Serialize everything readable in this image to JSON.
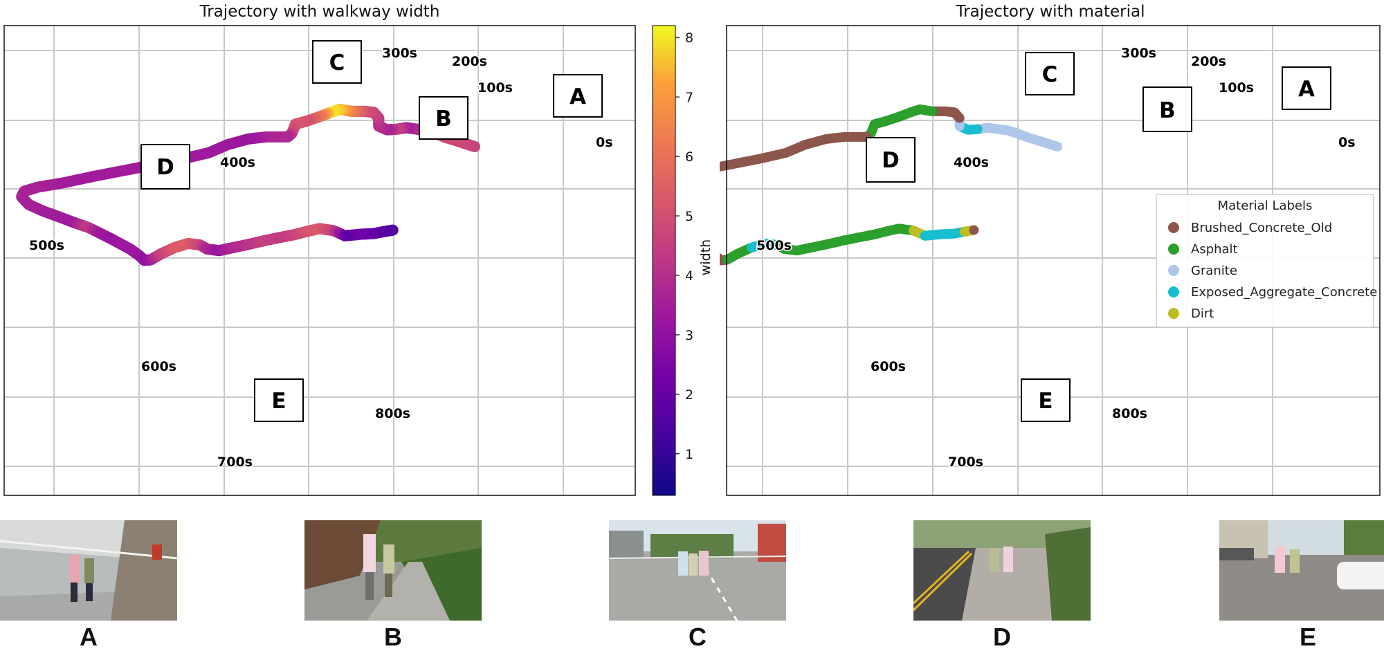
{
  "chart_data": [
    {
      "type": "scatter",
      "title": "Trajectory with walkway width",
      "colorbar": {
        "label": "width",
        "range": [
          0.3,
          8.2
        ],
        "ticks": [
          1,
          2,
          3,
          4,
          5,
          6,
          7,
          8
        ],
        "colormap": "plasma"
      },
      "grid": true,
      "time_labels": [
        "0s",
        "100s",
        "200s",
        "300s",
        "400s",
        "500s",
        "600s",
        "700s",
        "800s"
      ],
      "segment_labels": [
        "A",
        "B",
        "C",
        "D",
        "E"
      ],
      "path": [
        {
          "x": 0.0,
          "y": 0.0,
          "v": 4.6
        },
        {
          "x": -2.0,
          "y": 0.9,
          "v": 4.7
        },
        {
          "x": -4.1,
          "y": 1.8,
          "v": 4.8
        },
        {
          "x": -5.6,
          "y": 2.6,
          "v": 4.4
        },
        {
          "x": -7.0,
          "y": 3.2,
          "v": 3.3
        },
        {
          "x": -8.6,
          "y": 3.5,
          "v": 4.0
        },
        {
          "x": -9.7,
          "y": 3.7,
          "v": 3.5
        },
        {
          "x": -11.1,
          "y": 3.4,
          "v": 4.6
        },
        {
          "x": -12.4,
          "y": 3.3,
          "v": 3.6
        },
        {
          "x": -13.6,
          "y": 4.0,
          "v": 3.9
        },
        {
          "x": -13.6,
          "y": 5.6,
          "v": 4.3
        },
        {
          "x": -14.3,
          "y": 6.7,
          "v": 4.6
        },
        {
          "x": -15.6,
          "y": 6.9,
          "v": 5.0
        },
        {
          "x": -17.4,
          "y": 6.9,
          "v": 6.2
        },
        {
          "x": -19.1,
          "y": 7.3,
          "v": 7.6
        },
        {
          "x": -20.4,
          "y": 6.7,
          "v": 8.0
        },
        {
          "x": -21.9,
          "y": 5.9,
          "v": 6.2
        },
        {
          "x": -23.8,
          "y": 5.0,
          "v": 5.0
        },
        {
          "x": -25.4,
          "y": 4.4,
          "v": 5.2
        },
        {
          "x": -25.9,
          "y": 2.6,
          "v": 4.8
        },
        {
          "x": -26.5,
          "y": 1.9,
          "v": 3.8
        },
        {
          "x": -29.6,
          "y": 1.9,
          "v": 3.7
        },
        {
          "x": -32.1,
          "y": 1.5,
          "v": 3.2
        },
        {
          "x": -35.0,
          "y": 0.4,
          "v": 3.3
        },
        {
          "x": -37.7,
          "y": -1.2,
          "v": 3.3
        },
        {
          "x": -41.1,
          "y": -2.3,
          "v": 3.4
        },
        {
          "x": -44.7,
          "y": -3.3,
          "v": 3.3
        },
        {
          "x": -49.1,
          "y": -4.5,
          "v": 3.4
        },
        {
          "x": -54.0,
          "y": -5.8,
          "v": 3.4
        },
        {
          "x": -58.4,
          "y": -7.1,
          "v": 3.4
        },
        {
          "x": -61.9,
          "y": -7.9,
          "v": 3.6
        },
        {
          "x": -63.8,
          "y": -8.7,
          "v": 3.6
        },
        {
          "x": -64.2,
          "y": -9.8,
          "v": 3.7
        },
        {
          "x": -63.2,
          "y": -11.3,
          "v": 3.5
        },
        {
          "x": -61.1,
          "y": -12.6,
          "v": 3.5
        },
        {
          "x": -58.9,
          "y": -13.7,
          "v": 3.4
        },
        {
          "x": -56.8,
          "y": -14.8,
          "v": 3.3
        },
        {
          "x": -54.7,
          "y": -15.8,
          "v": 4.4
        },
        {
          "x": -53.1,
          "y": -16.9,
          "v": 3.4
        },
        {
          "x": -51.5,
          "y": -18.0,
          "v": 3.2
        },
        {
          "x": -49.9,
          "y": -19.2,
          "v": 3.3
        },
        {
          "x": -48.8,
          "y": -20.0,
          "v": 3.3
        },
        {
          "x": -47.5,
          "y": -21.3,
          "v": 3.2
        },
        {
          "x": -46.8,
          "y": -22.2,
          "v": 3.0
        },
        {
          "x": -45.9,
          "y": -22.1,
          "v": 3.2
        },
        {
          "x": -44.4,
          "y": -20.9,
          "v": 4.5
        },
        {
          "x": -42.5,
          "y": -19.7,
          "v": 5.3
        },
        {
          "x": -40.6,
          "y": -18.9,
          "v": 5.4
        },
        {
          "x": -38.9,
          "y": -19.2,
          "v": 4.8
        },
        {
          "x": -37.9,
          "y": -20.0,
          "v": 3.8
        },
        {
          "x": -36.2,
          "y": -20.3,
          "v": 3.2
        },
        {
          "x": -34.5,
          "y": -19.8,
          "v": 3.7
        },
        {
          "x": -32.1,
          "y": -19.1,
          "v": 4.1
        },
        {
          "x": -29.6,
          "y": -18.3,
          "v": 4.6
        },
        {
          "x": -27.5,
          "y": -17.7,
          "v": 4.3
        },
        {
          "x": -25.6,
          "y": -17.2,
          "v": 4.6
        },
        {
          "x": -23.6,
          "y": -16.5,
          "v": 5.1
        },
        {
          "x": -22.0,
          "y": -16.0,
          "v": 5.3
        },
        {
          "x": -20.0,
          "y": -16.4,
          "v": 4.6
        },
        {
          "x": -18.4,
          "y": -17.4,
          "v": 2.6
        },
        {
          "x": -17.6,
          "y": -17.3,
          "v": 1.7
        },
        {
          "x": -16.1,
          "y": -17.1,
          "v": 2.3
        },
        {
          "x": -14.4,
          "y": -17.0,
          "v": 2.0
        },
        {
          "x": -12.9,
          "y": -16.6,
          "v": 1.8
        },
        {
          "x": -11.6,
          "y": -16.3,
          "v": 1.6
        }
      ]
    },
    {
      "type": "scatter",
      "title": "Trajectory with material",
      "grid": true,
      "time_labels": [
        "0s",
        "100s",
        "200s",
        "300s",
        "400s",
        "500s",
        "600s",
        "700s",
        "800s"
      ],
      "segment_labels": [
        "A",
        "B",
        "C",
        "D",
        "E"
      ],
      "legend": {
        "title": "Material Labels",
        "position": "center-right",
        "entries": [
          {
            "name": "Brushed_Concrete_Old",
            "color": "#8c564b"
          },
          {
            "name": "Asphalt",
            "color": "#2ca02c"
          },
          {
            "name": "Granite",
            "color": "#aec7e8"
          },
          {
            "name": "Exposed_Aggregate_Concrete",
            "color": "#17becf"
          },
          {
            "name": "Dirt",
            "color": "#bcbd22"
          }
        ]
      },
      "segments": [
        {
          "material": "Granite",
          "from": 0,
          "to": 10
        },
        {
          "material": "Exposed_Aggregate_Concrete",
          "from": 7,
          "to": 9
        },
        {
          "material": "Brushed_Concrete_Old",
          "from": 10,
          "to": 13
        },
        {
          "material": "Asphalt",
          "from": 13,
          "to": 20
        },
        {
          "material": "Brushed_Concrete_Old",
          "from": 20,
          "to": 40
        },
        {
          "material": "Asphalt",
          "from": 40,
          "to": 41
        },
        {
          "material": "Brushed_Concrete_Old",
          "from": 41,
          "to": 44
        },
        {
          "material": "Asphalt",
          "from": 44,
          "to": 46
        },
        {
          "material": "Exposed_Aggregate_Concrete",
          "from": 46,
          "to": 48
        },
        {
          "material": "Asphalt",
          "from": 48,
          "to": 58
        },
        {
          "material": "Dirt",
          "from": 58,
          "to": 59
        },
        {
          "material": "Exposed_Aggregate_Concrete",
          "from": 59,
          "to": 63
        },
        {
          "material": "Dirt",
          "from": 63,
          "to": 64
        }
      ]
    }
  ],
  "photos": [
    {
      "label": "A",
      "scene": "indoor-corridor"
    },
    {
      "label": "B",
      "scene": "tree-lined-sidewalk"
    },
    {
      "label": "C",
      "scene": "road-crossing"
    },
    {
      "label": "D",
      "scene": "roadside-footpath"
    },
    {
      "label": "E",
      "scene": "carpark-street"
    }
  ]
}
